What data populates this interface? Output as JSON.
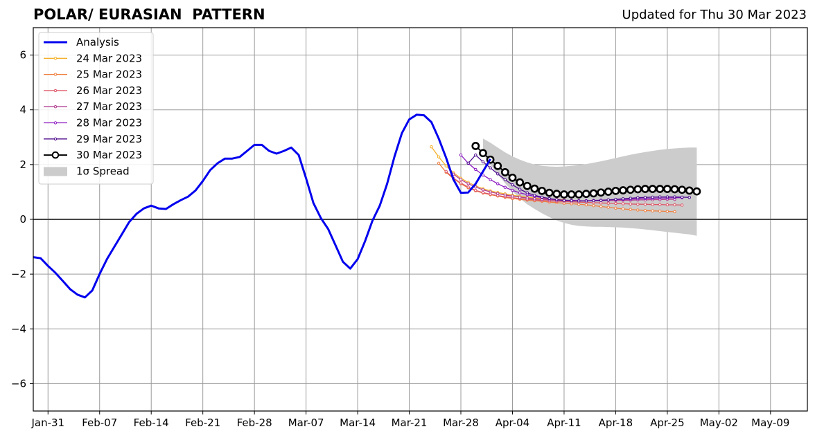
{
  "chart_data": {
    "type": "line",
    "title": "POLAR/ EURASIAN  PATTERN",
    "updated": "Updated for Thu 30 Mar 2023",
    "ylim": [
      -7,
      7
    ],
    "yticks": [
      -6,
      -4,
      -2,
      0,
      2,
      4,
      6
    ],
    "ytick_labels": [
      "−6",
      "−4",
      "−2",
      "0",
      "2",
      "4",
      "6"
    ],
    "xlim": [
      "2023-01-29",
      "2023-05-14"
    ],
    "xticks": [
      "2023-01-31",
      "2023-02-07",
      "2023-02-14",
      "2023-02-21",
      "2023-02-28",
      "2023-03-07",
      "2023-03-14",
      "2023-03-21",
      "2023-03-28",
      "2023-04-04",
      "2023-04-11",
      "2023-04-18",
      "2023-04-25",
      "2023-05-02",
      "2023-05-09"
    ],
    "xtick_labels": [
      "Jan-31",
      "Feb-07",
      "Feb-14",
      "Feb-21",
      "Feb-28",
      "Mar-07",
      "Mar-14",
      "Mar-21",
      "Mar-28",
      "Apr-04",
      "Apr-11",
      "Apr-18",
      "Apr-25",
      "May-02",
      "May-09"
    ],
    "grid": true,
    "legend_position": "top-left",
    "analysis": {
      "name": "Analysis",
      "color": "#0000ee",
      "start": "2023-01-29",
      "values": [
        -1.38,
        -1.42,
        -1.7,
        -1.95,
        -2.25,
        -2.55,
        -2.75,
        -2.85,
        -2.6,
        -2.0,
        -1.45,
        -1.0,
        -0.55,
        -0.1,
        0.2,
        0.4,
        0.5,
        0.4,
        0.38,
        0.55,
        0.7,
        0.83,
        1.05,
        1.4,
        1.8,
        2.05,
        2.22,
        2.22,
        2.28,
        2.5,
        2.72,
        2.72,
        2.5,
        2.4,
        2.5,
        2.62,
        2.35,
        1.5,
        0.6,
        0.05,
        -0.35,
        -0.95,
        -1.55,
        -1.8,
        -1.45,
        -0.8,
        -0.05,
        0.5,
        1.3,
        2.3,
        3.15,
        3.65,
        3.82,
        3.8,
        3.55,
        2.95,
        2.25,
        1.45,
        0.97,
        0.98,
        1.3,
        1.75,
        2.2
      ]
    },
    "series": [
      {
        "name": "24 Mar 2023",
        "color": "#f5b02a",
        "start": "2023-03-24",
        "values": [
          2.65,
          2.28,
          1.95,
          1.7,
          1.5,
          1.35,
          1.22,
          1.12,
          1.04,
          0.98,
          0.93,
          0.88,
          0.84,
          0.81,
          0.78,
          0.76,
          0.74,
          0.73,
          0.72
        ]
      },
      {
        "name": "25 Mar 2023",
        "color": "#ef8040",
        "start": "2023-03-25",
        "values": [
          2.05,
          1.72,
          1.48,
          1.3,
          1.15,
          1.04,
          0.96,
          0.9,
          0.85,
          0.8,
          0.76,
          0.73,
          0.7,
          0.68,
          0.66,
          0.63,
          0.61,
          0.59,
          0.57,
          0.55,
          0.53,
          0.5,
          0.47,
          0.44,
          0.41,
          0.38,
          0.36,
          0.34,
          0.32,
          0.31,
          0.3,
          0.29,
          0.28
        ]
      },
      {
        "name": "26 Mar 2023",
        "color": "#dd5566",
        "start": "2023-03-26",
        "values": [
          1.75,
          1.5,
          1.33,
          1.18,
          1.06,
          0.98,
          0.92,
          0.87,
          0.83,
          0.79,
          0.76,
          0.73,
          0.71,
          0.69,
          0.67,
          0.66,
          0.65,
          0.64,
          0.63,
          0.62,
          0.61,
          0.6,
          0.59,
          0.58,
          0.57,
          0.56,
          0.55,
          0.55,
          0.54,
          0.54,
          0.53,
          0.53,
          0.52
        ]
      },
      {
        "name": "27 Mar 2023",
        "color": "#b03c90",
        "start": "2023-03-27",
        "values": [
          1.65,
          1.45,
          1.3,
          1.18,
          1.08,
          1.0,
          0.94,
          0.89,
          0.85,
          0.81,
          0.78,
          0.75,
          0.73,
          0.71,
          0.7,
          0.69,
          0.69,
          0.68,
          0.68,
          0.68,
          0.68,
          0.69,
          0.69,
          0.7,
          0.7,
          0.71,
          0.71,
          0.72,
          0.72,
          0.73,
          0.73
        ]
      },
      {
        "name": "28 Mar 2023",
        "color": "#8a18c0",
        "start": "2023-03-28",
        "values": [
          2.35,
          2.05,
          1.82,
          1.62,
          1.45,
          1.3,
          1.17,
          1.06,
          0.97,
          0.9,
          0.84,
          0.79,
          0.75,
          0.72,
          0.7,
          0.69,
          0.68,
          0.68,
          0.69,
          0.7,
          0.71,
          0.72,
          0.73,
          0.74,
          0.75,
          0.76,
          0.77,
          0.78,
          0.78,
          0.79,
          0.79
        ]
      },
      {
        "name": "29 Mar 2023",
        "color": "#4b0a8c",
        "start": "2023-03-29",
        "values": [
          2.05,
          2.35,
          2.1,
          1.88,
          1.66,
          1.45,
          1.26,
          1.1,
          0.97,
          0.88,
          0.81,
          0.76,
          0.72,
          0.69,
          0.68,
          0.67,
          0.67,
          0.68,
          0.69,
          0.71,
          0.73,
          0.75,
          0.77,
          0.79,
          0.8,
          0.81,
          0.82,
          0.82,
          0.82,
          0.81,
          0.8
        ]
      },
      {
        "name": "30 Mar 2023",
        "color": "#000000",
        "start": "2023-03-30",
        "values": [
          2.68,
          2.42,
          2.18,
          1.95,
          1.72,
          1.52,
          1.35,
          1.22,
          1.12,
          1.04,
          0.97,
          0.93,
          0.91,
          0.91,
          0.91,
          0.93,
          0.95,
          0.98,
          1.01,
          1.04,
          1.06,
          1.08,
          1.1,
          1.11,
          1.11,
          1.11,
          1.11,
          1.1,
          1.08,
          1.05,
          1.02
        ]
      }
    ],
    "spread": {
      "name": "1σ Spread",
      "color": "#cccccc",
      "start": "2023-03-31",
      "upper": [
        2.95,
        2.8,
        2.62,
        2.45,
        2.3,
        2.18,
        2.08,
        2.0,
        1.95,
        1.93,
        1.92,
        1.93,
        1.95,
        1.98,
        2.02,
        2.07,
        2.12,
        2.18,
        2.24,
        2.3,
        2.36,
        2.41,
        2.46,
        2.5,
        2.54,
        2.57,
        2.59,
        2.61,
        2.62,
        2.62
      ],
      "lower": [
        2.4,
        2.0,
        1.65,
        1.32,
        1.02,
        0.76,
        0.55,
        0.38,
        0.22,
        0.08,
        -0.04,
        -0.13,
        -0.2,
        -0.24,
        -0.26,
        -0.27,
        -0.27,
        -0.28,
        -0.29,
        -0.3,
        -0.32,
        -0.34,
        -0.37,
        -0.4,
        -0.43,
        -0.46,
        -0.49,
        -0.52,
        -0.55,
        -0.6
      ]
    }
  }
}
